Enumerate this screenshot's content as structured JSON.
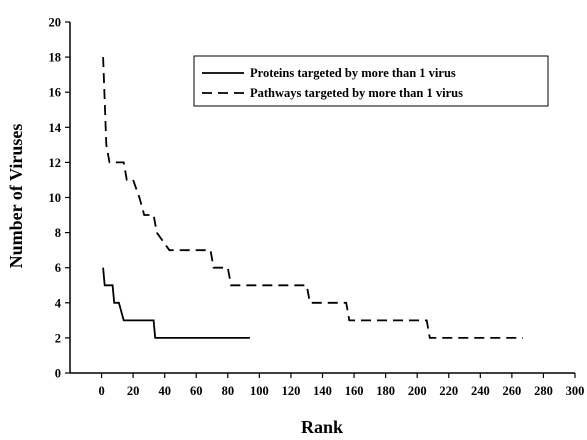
{
  "chart_data": {
    "type": "line",
    "title": "",
    "xlabel": "Rank",
    "ylabel": "Number of Viruses",
    "xlim": [
      -20,
      300
    ],
    "ylim": [
      0,
      20
    ],
    "xticks": [
      0,
      20,
      40,
      60,
      80,
      100,
      120,
      140,
      160,
      180,
      200,
      220,
      240,
      260,
      280,
      300
    ],
    "yticks": [
      0,
      2,
      4,
      6,
      8,
      10,
      12,
      14,
      16,
      18,
      20
    ],
    "grid": false,
    "legend_position": "top-right",
    "series": [
      {
        "name": "Proteins targeted by more than 1 virus",
        "style": "solid",
        "color": "#000000",
        "x": [
          1,
          2,
          7,
          8,
          11,
          14,
          33,
          34,
          94
        ],
        "y": [
          6,
          5,
          5,
          4,
          4,
          3,
          3,
          2,
          2
        ]
      },
      {
        "name": "Pathways targeted by more than 1 virus",
        "style": "dashed",
        "color": "#000000",
        "x": [
          1,
          3,
          5,
          14,
          16,
          20,
          24,
          27,
          33,
          35,
          43,
          69,
          71,
          80,
          82,
          130,
          132,
          155,
          157,
          206,
          208,
          267
        ],
        "y": [
          18,
          13,
          12,
          12,
          11,
          11,
          10,
          9,
          9,
          8,
          7,
          7,
          6,
          6,
          5,
          5,
          4,
          4,
          3,
          3,
          2,
          2
        ]
      }
    ]
  }
}
